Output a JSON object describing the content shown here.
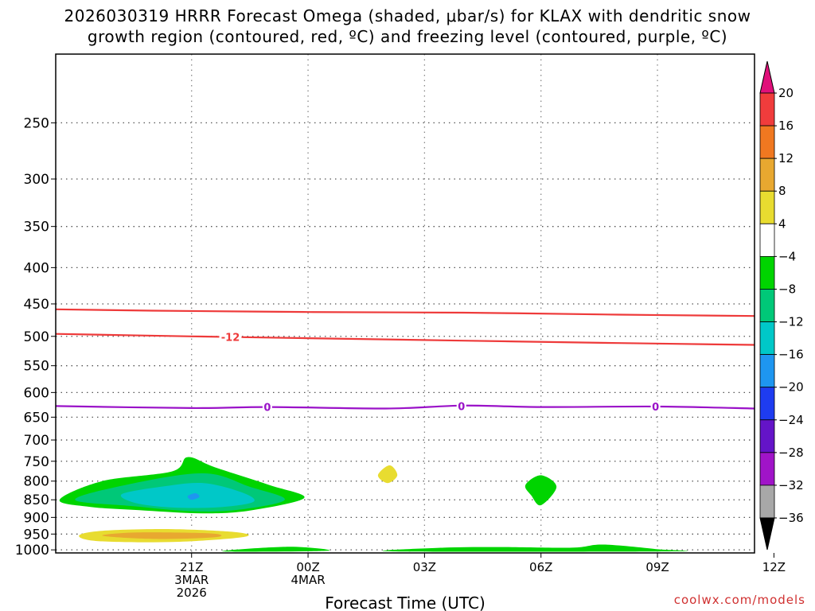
{
  "title_line1": "2026030319 HRRR Forecast Omega (shaded, μbar/s) for KLAX with dendritic snow",
  "title_line2": "growth region (contoured, red, ºC) and freezing level (contoured, purple, ºC)",
  "credit": "coolwx.com/models",
  "chart_data": {
    "type": "heatmap",
    "title": "2026030319 HRRR Forecast Omega (shaded, μbar/s) for KLAX with dendritic snow growth region (contoured, red, ºC) and freezing level (contoured, purple, ºC)",
    "xlabel": "Forecast Time (UTC)",
    "ylabel": "",
    "x_range_hours": [
      -1.5,
      16.5
    ],
    "y_range_hpa": [
      1010,
      200
    ],
    "x_ticks": [
      {
        "hour": 2,
        "labels": [
          "21Z",
          "3MAR",
          "2026"
        ]
      },
      {
        "hour": 5,
        "labels": [
          "00Z",
          "4MAR"
        ]
      },
      {
        "hour": 8,
        "labels": [
          "03Z"
        ]
      },
      {
        "hour": 11,
        "labels": [
          "06Z"
        ]
      },
      {
        "hour": 14,
        "labels": [
          "09Z"
        ]
      },
      {
        "hour": 17,
        "labels": [
          "12Z"
        ]
      }
    ],
    "y_ticks": [
      250,
      300,
      350,
      400,
      450,
      500,
      550,
      600,
      650,
      700,
      750,
      800,
      850,
      900,
      950,
      1000
    ],
    "colorbar": {
      "labels": [
        "20",
        "16",
        "12",
        "8",
        "4",
        "−4",
        "−8",
        "−12",
        "−16",
        "−20",
        "−24",
        "−28",
        "−32",
        "−36"
      ],
      "colors": [
        "#f03c3c",
        "#f07820",
        "#e8a830",
        "#e8dc30",
        "#ffffff",
        "#00d400",
        "#00c878",
        "#00c8c8",
        "#1e96f0",
        "#1e3cf0",
        "#6414c8",
        "#a014c8",
        "#a8a8a8"
      ],
      "top_color": "#e0107a",
      "bottom_color": "#000000"
    },
    "contours": [
      {
        "label": "",
        "color": "#ee3a3a",
        "points": [
          [
            -1.5,
            458
          ],
          [
            1,
            460
          ],
          [
            5,
            462
          ],
          [
            9,
            463
          ],
          [
            13,
            466
          ],
          [
            16.5,
            468
          ]
        ]
      },
      {
        "label": "-12",
        "color": "#ee3a3a",
        "points": [
          [
            -1.5,
            496
          ],
          [
            2,
            500
          ],
          [
            5,
            503
          ],
          [
            9,
            507
          ],
          [
            13,
            511
          ],
          [
            16.5,
            514
          ]
        ]
      },
      {
        "label": "0",
        "color": "#9a12c8",
        "points": [
          [
            -1.5,
            627
          ],
          [
            2,
            631
          ],
          [
            4,
            629
          ],
          [
            7,
            632
          ],
          [
            9,
            626
          ],
          [
            11,
            629
          ],
          [
            14,
            628
          ],
          [
            16.5,
            632
          ]
        ]
      }
    ],
    "contour_labels": [
      {
        "text": "-12",
        "hour": 3.0,
        "hpa": 501,
        "color": "#ee3a3a"
      },
      {
        "text": "0",
        "hour": 3.95,
        "hpa": 629,
        "color": "#9a12c8"
      },
      {
        "text": "0",
        "hour": 8.95,
        "hpa": 627,
        "color": "#9a12c8"
      },
      {
        "text": "0",
        "hour": 13.95,
        "hpa": 628,
        "color": "#9a12c8"
      }
    ],
    "shaded_regions": [
      {
        "range": "-8 to -4",
        "color": "#00d400",
        "points": [
          [
            -1.4,
            850
          ],
          [
            -0.3,
            800
          ],
          [
            1.5,
            775
          ],
          [
            1.9,
            740
          ],
          [
            2.6,
            765
          ],
          [
            4.0,
            810
          ],
          [
            4.9,
            845
          ],
          [
            3.5,
            880
          ],
          [
            2.3,
            888
          ],
          [
            0.8,
            880
          ],
          [
            -0.6,
            870
          ]
        ]
      },
      {
        "range": "-12 to -8",
        "color": "#00c878",
        "points": [
          [
            -1.0,
            850
          ],
          [
            0.3,
            810
          ],
          [
            2.3,
            780
          ],
          [
            3.5,
            815
          ],
          [
            4.4,
            850
          ],
          [
            3.2,
            878
          ],
          [
            2.0,
            882
          ],
          [
            0.5,
            868
          ]
        ]
      },
      {
        "range": "-16 to -12",
        "color": "#00c8c8",
        "points": [
          [
            0.2,
            835
          ],
          [
            1.2,
            815
          ],
          [
            2.3,
            805
          ],
          [
            3.3,
            830
          ],
          [
            3.6,
            855
          ],
          [
            2.8,
            870
          ],
          [
            1.6,
            872
          ],
          [
            0.6,
            860
          ]
        ]
      },
      {
        "range": "-20 to -16",
        "color": "#1e96f0",
        "points": [
          [
            1.9,
            840
          ],
          [
            2.1,
            832
          ],
          [
            2.2,
            842
          ],
          [
            2.0,
            850
          ]
        ]
      },
      {
        "range": "4 to 8",
        "color": "#e8dc30",
        "points": [
          [
            -0.9,
            955
          ],
          [
            -0.3,
            940
          ],
          [
            1.5,
            935
          ],
          [
            3.2,
            945
          ],
          [
            3.3,
            960
          ],
          [
            1.5,
            975
          ],
          [
            -0.4,
            972
          ]
        ]
      },
      {
        "range": "8 to 12",
        "color": "#e8a830",
        "points": [
          [
            -0.3,
            955
          ],
          [
            0.6,
            945
          ],
          [
            2.5,
            948
          ],
          [
            2.6,
            960
          ],
          [
            1.0,
            965
          ]
        ]
      },
      {
        "range": "4 to 8",
        "color": "#e8dc30",
        "points": [
          [
            6.8,
            785
          ],
          [
            7.1,
            760
          ],
          [
            7.3,
            785
          ],
          [
            7.05,
            805
          ]
        ]
      },
      {
        "range": "-8 to -4",
        "color": "#00d400",
        "points": [
          [
            10.6,
            810
          ],
          [
            11.0,
            785
          ],
          [
            11.4,
            815
          ],
          [
            11.0,
            865
          ],
          [
            10.75,
            838
          ]
        ]
      },
      {
        "range": "-8 to -4",
        "color": "#00d400",
        "points": [
          [
            2.8,
            1005
          ],
          [
            4.5,
            990
          ],
          [
            5.5,
            1003
          ]
        ]
      },
      {
        "range": "-8 to -4",
        "color": "#00d400",
        "points": [
          [
            7.2,
            1005
          ],
          [
            8.5,
            993
          ],
          [
            10.0,
            991
          ],
          [
            11.8,
            993
          ],
          [
            12.6,
            983
          ],
          [
            14.0,
            998
          ],
          [
            14.3,
            1005
          ]
        ]
      }
    ],
    "ground_below_hpa": 1010,
    "ground_color": "#a0522d"
  }
}
